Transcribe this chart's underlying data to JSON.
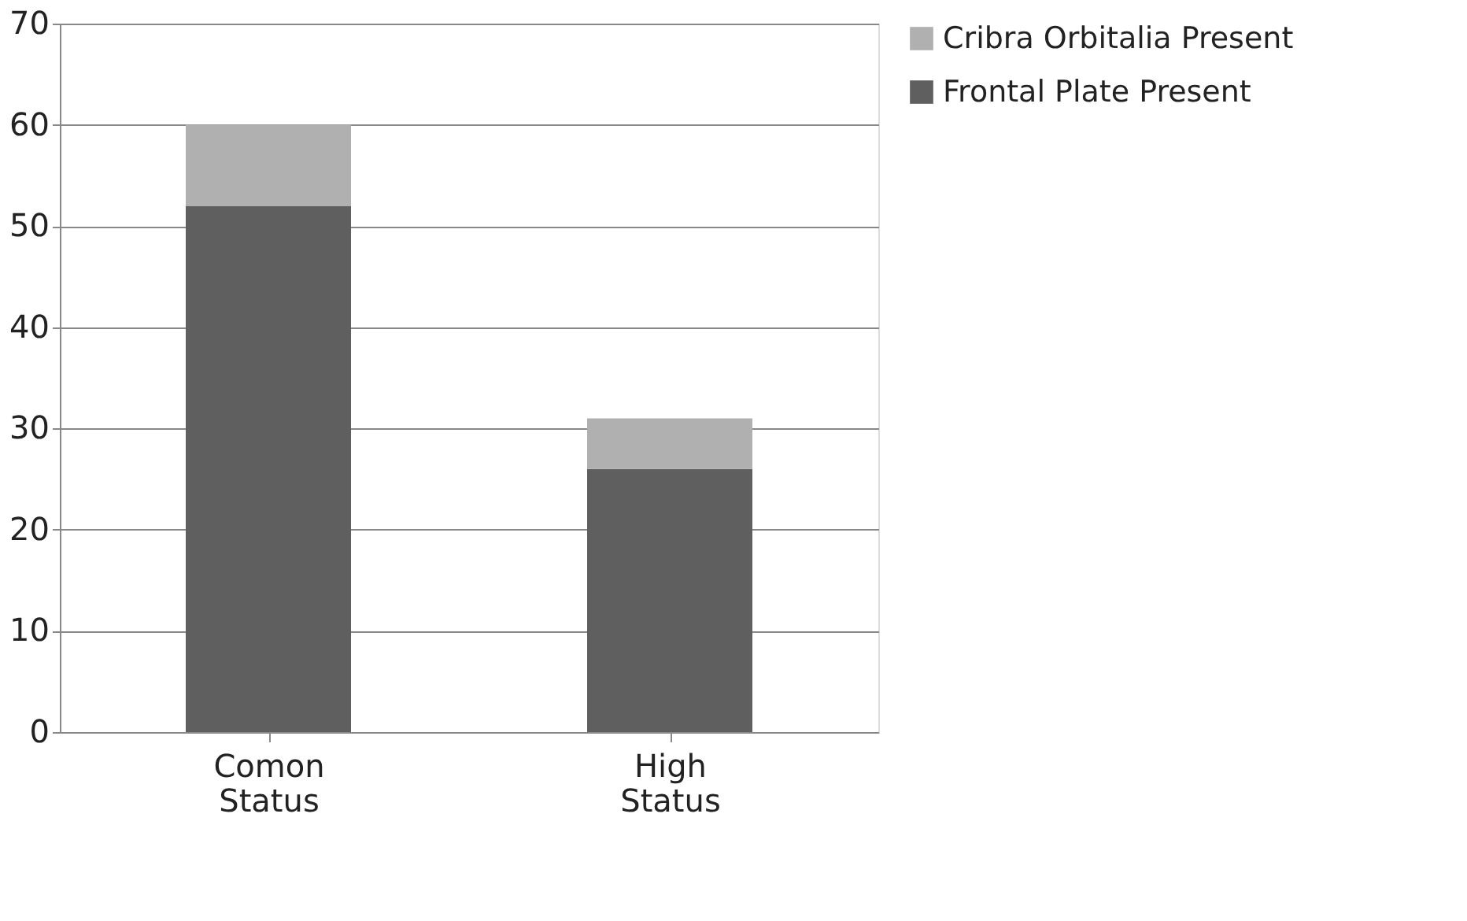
{
  "chart_data": {
    "type": "bar",
    "stacked": true,
    "categories": [
      "Comon Status",
      "High Status"
    ],
    "series": [
      {
        "name": "Frontal Plate Present",
        "color": "#5f5f5f",
        "values": [
          52,
          26
        ]
      },
      {
        "name": "Cribra Orbitalia Present",
        "color": "#b0b0b0",
        "values": [
          8,
          5
        ]
      }
    ],
    "ylim": [
      0,
      70
    ],
    "yticks": [
      0,
      10,
      20,
      30,
      40,
      50,
      60,
      70
    ],
    "grid": "y",
    "legend": "right"
  }
}
